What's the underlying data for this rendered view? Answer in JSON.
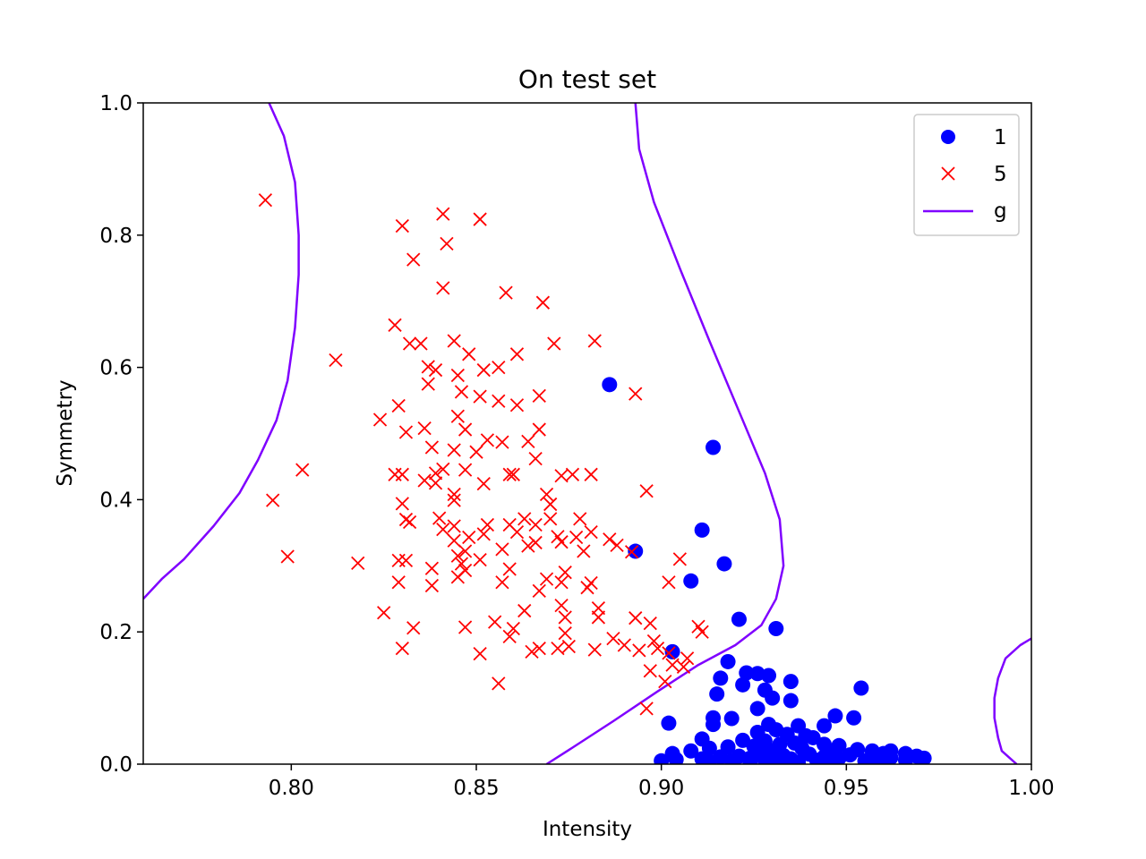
{
  "chart_data": {
    "type": "scatter",
    "title": "On test set",
    "xlabel": "Intensity",
    "ylabel": "Symmetry",
    "xlim": [
      0.76,
      1.0
    ],
    "ylim": [
      0.0,
      1.0
    ],
    "xticks": [
      "0.80",
      "0.85",
      "0.90",
      "0.95",
      "1.00"
    ],
    "xtick_values": [
      0.8,
      0.85,
      0.9,
      0.95,
      1.0
    ],
    "yticks": [
      "0.0",
      "0.2",
      "0.4",
      "0.6",
      "0.8",
      "1.0"
    ],
    "ytick_values": [
      0.0,
      0.2,
      0.4,
      0.6,
      0.8,
      1.0
    ],
    "grid": false,
    "legend_position": "upper right",
    "series": [
      {
        "name": "1",
        "marker": "circle",
        "color": "#0000ff",
        "points": [
          [
            0.886,
            0.574
          ],
          [
            0.914,
            0.479
          ],
          [
            0.911,
            0.354
          ],
          [
            0.893,
            0.322
          ],
          [
            0.917,
            0.303
          ],
          [
            0.908,
            0.277
          ],
          [
            0.921,
            0.219
          ],
          [
            0.931,
            0.205
          ],
          [
            0.903,
            0.17
          ],
          [
            0.918,
            0.155
          ],
          [
            0.923,
            0.138
          ],
          [
            0.926,
            0.137
          ],
          [
            0.929,
            0.134
          ],
          [
            0.916,
            0.13
          ],
          [
            0.935,
            0.125
          ],
          [
            0.922,
            0.12
          ],
          [
            0.954,
            0.115
          ],
          [
            0.928,
            0.112
          ],
          [
            0.915,
            0.106
          ],
          [
            0.93,
            0.1
          ],
          [
            0.935,
            0.096
          ],
          [
            0.926,
            0.084
          ],
          [
            0.947,
            0.073
          ],
          [
            0.914,
            0.07
          ],
          [
            0.919,
            0.069
          ],
          [
            0.952,
            0.07
          ],
          [
            0.902,
            0.062
          ],
          [
            0.914,
            0.06
          ],
          [
            0.929,
            0.06
          ],
          [
            0.937,
            0.058
          ],
          [
            0.944,
            0.058
          ],
          [
            0.931,
            0.052
          ],
          [
            0.926,
            0.048
          ],
          [
            0.934,
            0.045
          ],
          [
            0.939,
            0.043
          ],
          [
            0.941,
            0.04
          ],
          [
            0.911,
            0.038
          ],
          [
            0.922,
            0.036
          ],
          [
            0.928,
            0.035
          ],
          [
            0.936,
            0.032
          ],
          [
            0.932,
            0.03
          ],
          [
            0.944,
            0.03
          ],
          [
            0.948,
            0.028
          ],
          [
            0.925,
            0.027
          ],
          [
            0.918,
            0.026
          ],
          [
            0.913,
            0.024
          ],
          [
            0.938,
            0.024
          ],
          [
            0.953,
            0.022
          ],
          [
            0.957,
            0.02
          ],
          [
            0.962,
            0.02
          ],
          [
            0.908,
            0.02
          ],
          [
            0.93,
            0.02
          ],
          [
            0.946,
            0.019
          ],
          [
            0.96,
            0.016
          ],
          [
            0.903,
            0.016
          ],
          [
            0.966,
            0.016
          ],
          [
            0.927,
            0.016
          ],
          [
            0.94,
            0.015
          ],
          [
            0.951,
            0.014
          ],
          [
            0.933,
            0.013
          ],
          [
            0.969,
            0.012
          ],
          [
            0.921,
            0.012
          ],
          [
            0.944,
            0.011
          ],
          [
            0.916,
            0.011
          ],
          [
            0.957,
            0.01
          ],
          [
            0.962,
            0.01
          ],
          [
            0.971,
            0.009
          ],
          [
            0.948,
            0.009
          ],
          [
            0.924,
            0.009
          ],
          [
            0.911,
            0.008
          ],
          [
            0.935,
            0.008
          ],
          [
            0.904,
            0.007
          ],
          [
            0.966,
            0.006
          ],
          [
            0.942,
            0.006
          ],
          [
            0.928,
            0.006
          ],
          [
            0.9,
            0.005
          ],
          [
            0.919,
            0.005
          ],
          [
            0.955,
            0.005
          ],
          [
            0.931,
            0.004
          ],
          [
            0.913,
            0.004
          ],
          [
            0.946,
            0.004
          ],
          [
            0.937,
            0.003
          ],
          [
            0.96,
            0.003
          ],
          [
            0.924,
            0.003
          ],
          [
            0.933,
            0.002
          ]
        ]
      },
      {
        "name": "5",
        "marker": "x",
        "color": "#ff0000",
        "points": [
          [
            0.793,
            0.853
          ],
          [
            0.83,
            0.814
          ],
          [
            0.841,
            0.832
          ],
          [
            0.851,
            0.824
          ],
          [
            0.842,
            0.787
          ],
          [
            0.833,
            0.763
          ],
          [
            0.841,
            0.72
          ],
          [
            0.858,
            0.713
          ],
          [
            0.868,
            0.698
          ],
          [
            0.828,
            0.664
          ],
          [
            0.882,
            0.64
          ],
          [
            0.835,
            0.636
          ],
          [
            0.832,
            0.636
          ],
          [
            0.871,
            0.636
          ],
          [
            0.844,
            0.64
          ],
          [
            0.812,
            0.611
          ],
          [
            0.848,
            0.62
          ],
          [
            0.861,
            0.62
          ],
          [
            0.837,
            0.601
          ],
          [
            0.839,
            0.596
          ],
          [
            0.852,
            0.596
          ],
          [
            0.845,
            0.588
          ],
          [
            0.856,
            0.6
          ],
          [
            0.837,
            0.575
          ],
          [
            0.846,
            0.563
          ],
          [
            0.867,
            0.557
          ],
          [
            0.893,
            0.56
          ],
          [
            0.851,
            0.556
          ],
          [
            0.856,
            0.549
          ],
          [
            0.829,
            0.542
          ],
          [
            0.861,
            0.543
          ],
          [
            0.845,
            0.526
          ],
          [
            0.824,
            0.521
          ],
          [
            0.847,
            0.506
          ],
          [
            0.836,
            0.508
          ],
          [
            0.831,
            0.502
          ],
          [
            0.867,
            0.506
          ],
          [
            0.853,
            0.49
          ],
          [
            0.857,
            0.487
          ],
          [
            0.864,
            0.488
          ],
          [
            0.838,
            0.479
          ],
          [
            0.844,
            0.475
          ],
          [
            0.85,
            0.472
          ],
          [
            0.866,
            0.462
          ],
          [
            0.803,
            0.445
          ],
          [
            0.828,
            0.438
          ],
          [
            0.83,
            0.438
          ],
          [
            0.839,
            0.44
          ],
          [
            0.841,
            0.446
          ],
          [
            0.847,
            0.445
          ],
          [
            0.859,
            0.438
          ],
          [
            0.86,
            0.438
          ],
          [
            0.873,
            0.436
          ],
          [
            0.876,
            0.438
          ],
          [
            0.881,
            0.438
          ],
          [
            0.836,
            0.429
          ],
          [
            0.839,
            0.425
          ],
          [
            0.844,
            0.408
          ],
          [
            0.852,
            0.424
          ],
          [
            0.869,
            0.408
          ],
          [
            0.896,
            0.413
          ],
          [
            0.795,
            0.399
          ],
          [
            0.87,
            0.393
          ],
          [
            0.83,
            0.394
          ],
          [
            0.844,
            0.399
          ],
          [
            0.863,
            0.371
          ],
          [
            0.87,
            0.371
          ],
          [
            0.878,
            0.371
          ],
          [
            0.831,
            0.37
          ],
          [
            0.832,
            0.366
          ],
          [
            0.84,
            0.372
          ],
          [
            0.853,
            0.362
          ],
          [
            0.859,
            0.362
          ],
          [
            0.866,
            0.362
          ],
          [
            0.844,
            0.36
          ],
          [
            0.852,
            0.348
          ],
          [
            0.861,
            0.351
          ],
          [
            0.841,
            0.355
          ],
          [
            0.848,
            0.343
          ],
          [
            0.872,
            0.344
          ],
          [
            0.877,
            0.343
          ],
          [
            0.881,
            0.351
          ],
          [
            0.886,
            0.34
          ],
          [
            0.888,
            0.331
          ],
          [
            0.844,
            0.338
          ],
          [
            0.866,
            0.335
          ],
          [
            0.857,
            0.325
          ],
          [
            0.864,
            0.33
          ],
          [
            0.873,
            0.336
          ],
          [
            0.879,
            0.322
          ],
          [
            0.892,
            0.321
          ],
          [
            0.847,
            0.322
          ],
          [
            0.851,
            0.309
          ],
          [
            0.845,
            0.315
          ],
          [
            0.799,
            0.314
          ],
          [
            0.818,
            0.304
          ],
          [
            0.829,
            0.308
          ],
          [
            0.831,
            0.308
          ],
          [
            0.838,
            0.296
          ],
          [
            0.846,
            0.303
          ],
          [
            0.847,
            0.293
          ],
          [
            0.859,
            0.295
          ],
          [
            0.874,
            0.29
          ],
          [
            0.905,
            0.31
          ],
          [
            0.845,
            0.283
          ],
          [
            0.869,
            0.28
          ],
          [
            0.873,
            0.275
          ],
          [
            0.881,
            0.274
          ],
          [
            0.829,
            0.275
          ],
          [
            0.838,
            0.27
          ],
          [
            0.857,
            0.275
          ],
          [
            0.88,
            0.267
          ],
          [
            0.867,
            0.262
          ],
          [
            0.902,
            0.275
          ],
          [
            0.873,
            0.24
          ],
          [
            0.863,
            0.232
          ],
          [
            0.883,
            0.236
          ],
          [
            0.825,
            0.229
          ],
          [
            0.874,
            0.222
          ],
          [
            0.883,
            0.222
          ],
          [
            0.893,
            0.221
          ],
          [
            0.897,
            0.213
          ],
          [
            0.91,
            0.208
          ],
          [
            0.855,
            0.215
          ],
          [
            0.86,
            0.205
          ],
          [
            0.833,
            0.206
          ],
          [
            0.847,
            0.207
          ],
          [
            0.859,
            0.193
          ],
          [
            0.874,
            0.198
          ],
          [
            0.887,
            0.19
          ],
          [
            0.875,
            0.178
          ],
          [
            0.898,
            0.186
          ],
          [
            0.911,
            0.2
          ],
          [
            0.899,
            0.175
          ],
          [
            0.902,
            0.168
          ],
          [
            0.89,
            0.18
          ],
          [
            0.83,
            0.175
          ],
          [
            0.851,
            0.167
          ],
          [
            0.865,
            0.17
          ],
          [
            0.872,
            0.175
          ],
          [
            0.867,
            0.175
          ],
          [
            0.882,
            0.173
          ],
          [
            0.894,
            0.172
          ],
          [
            0.907,
            0.16
          ],
          [
            0.897,
            0.141
          ],
          [
            0.903,
            0.15
          ],
          [
            0.906,
            0.147
          ],
          [
            0.901,
            0.125
          ],
          [
            0.856,
            0.122
          ],
          [
            0.896,
            0.084
          ]
        ]
      }
    ],
    "decision_boundary": {
      "name": "g",
      "color": "#7f00ff",
      "curves": [
        [
          [
            0.794,
            1.0
          ],
          [
            0.798,
            0.95
          ],
          [
            0.801,
            0.88
          ],
          [
            0.802,
            0.8
          ],
          [
            0.802,
            0.74
          ],
          [
            0.801,
            0.66
          ],
          [
            0.799,
            0.58
          ],
          [
            0.796,
            0.52
          ],
          [
            0.791,
            0.46
          ],
          [
            0.786,
            0.41
          ],
          [
            0.779,
            0.36
          ],
          [
            0.771,
            0.31
          ],
          [
            0.765,
            0.28
          ],
          [
            0.76,
            0.25
          ]
        ],
        [
          [
            0.893,
            1.0
          ],
          [
            0.894,
            0.93
          ],
          [
            0.898,
            0.85
          ],
          [
            0.905,
            0.75
          ],
          [
            0.913,
            0.64
          ],
          [
            0.922,
            0.52
          ],
          [
            0.928,
            0.44
          ],
          [
            0.932,
            0.37
          ],
          [
            0.933,
            0.3
          ],
          [
            0.931,
            0.25
          ],
          [
            0.927,
            0.21
          ],
          [
            0.92,
            0.18
          ],
          [
            0.91,
            0.15
          ],
          [
            0.899,
            0.11
          ],
          [
            0.887,
            0.065
          ],
          [
            0.876,
            0.025
          ],
          [
            0.869,
            0.0
          ]
        ],
        [
          [
            1.0,
            0.19
          ],
          [
            0.997,
            0.18
          ],
          [
            0.993,
            0.16
          ],
          [
            0.991,
            0.13
          ],
          [
            0.99,
            0.1
          ],
          [
            0.99,
            0.07
          ],
          [
            0.991,
            0.04
          ],
          [
            0.992,
            0.02
          ],
          [
            0.996,
            0.0
          ]
        ]
      ]
    }
  }
}
